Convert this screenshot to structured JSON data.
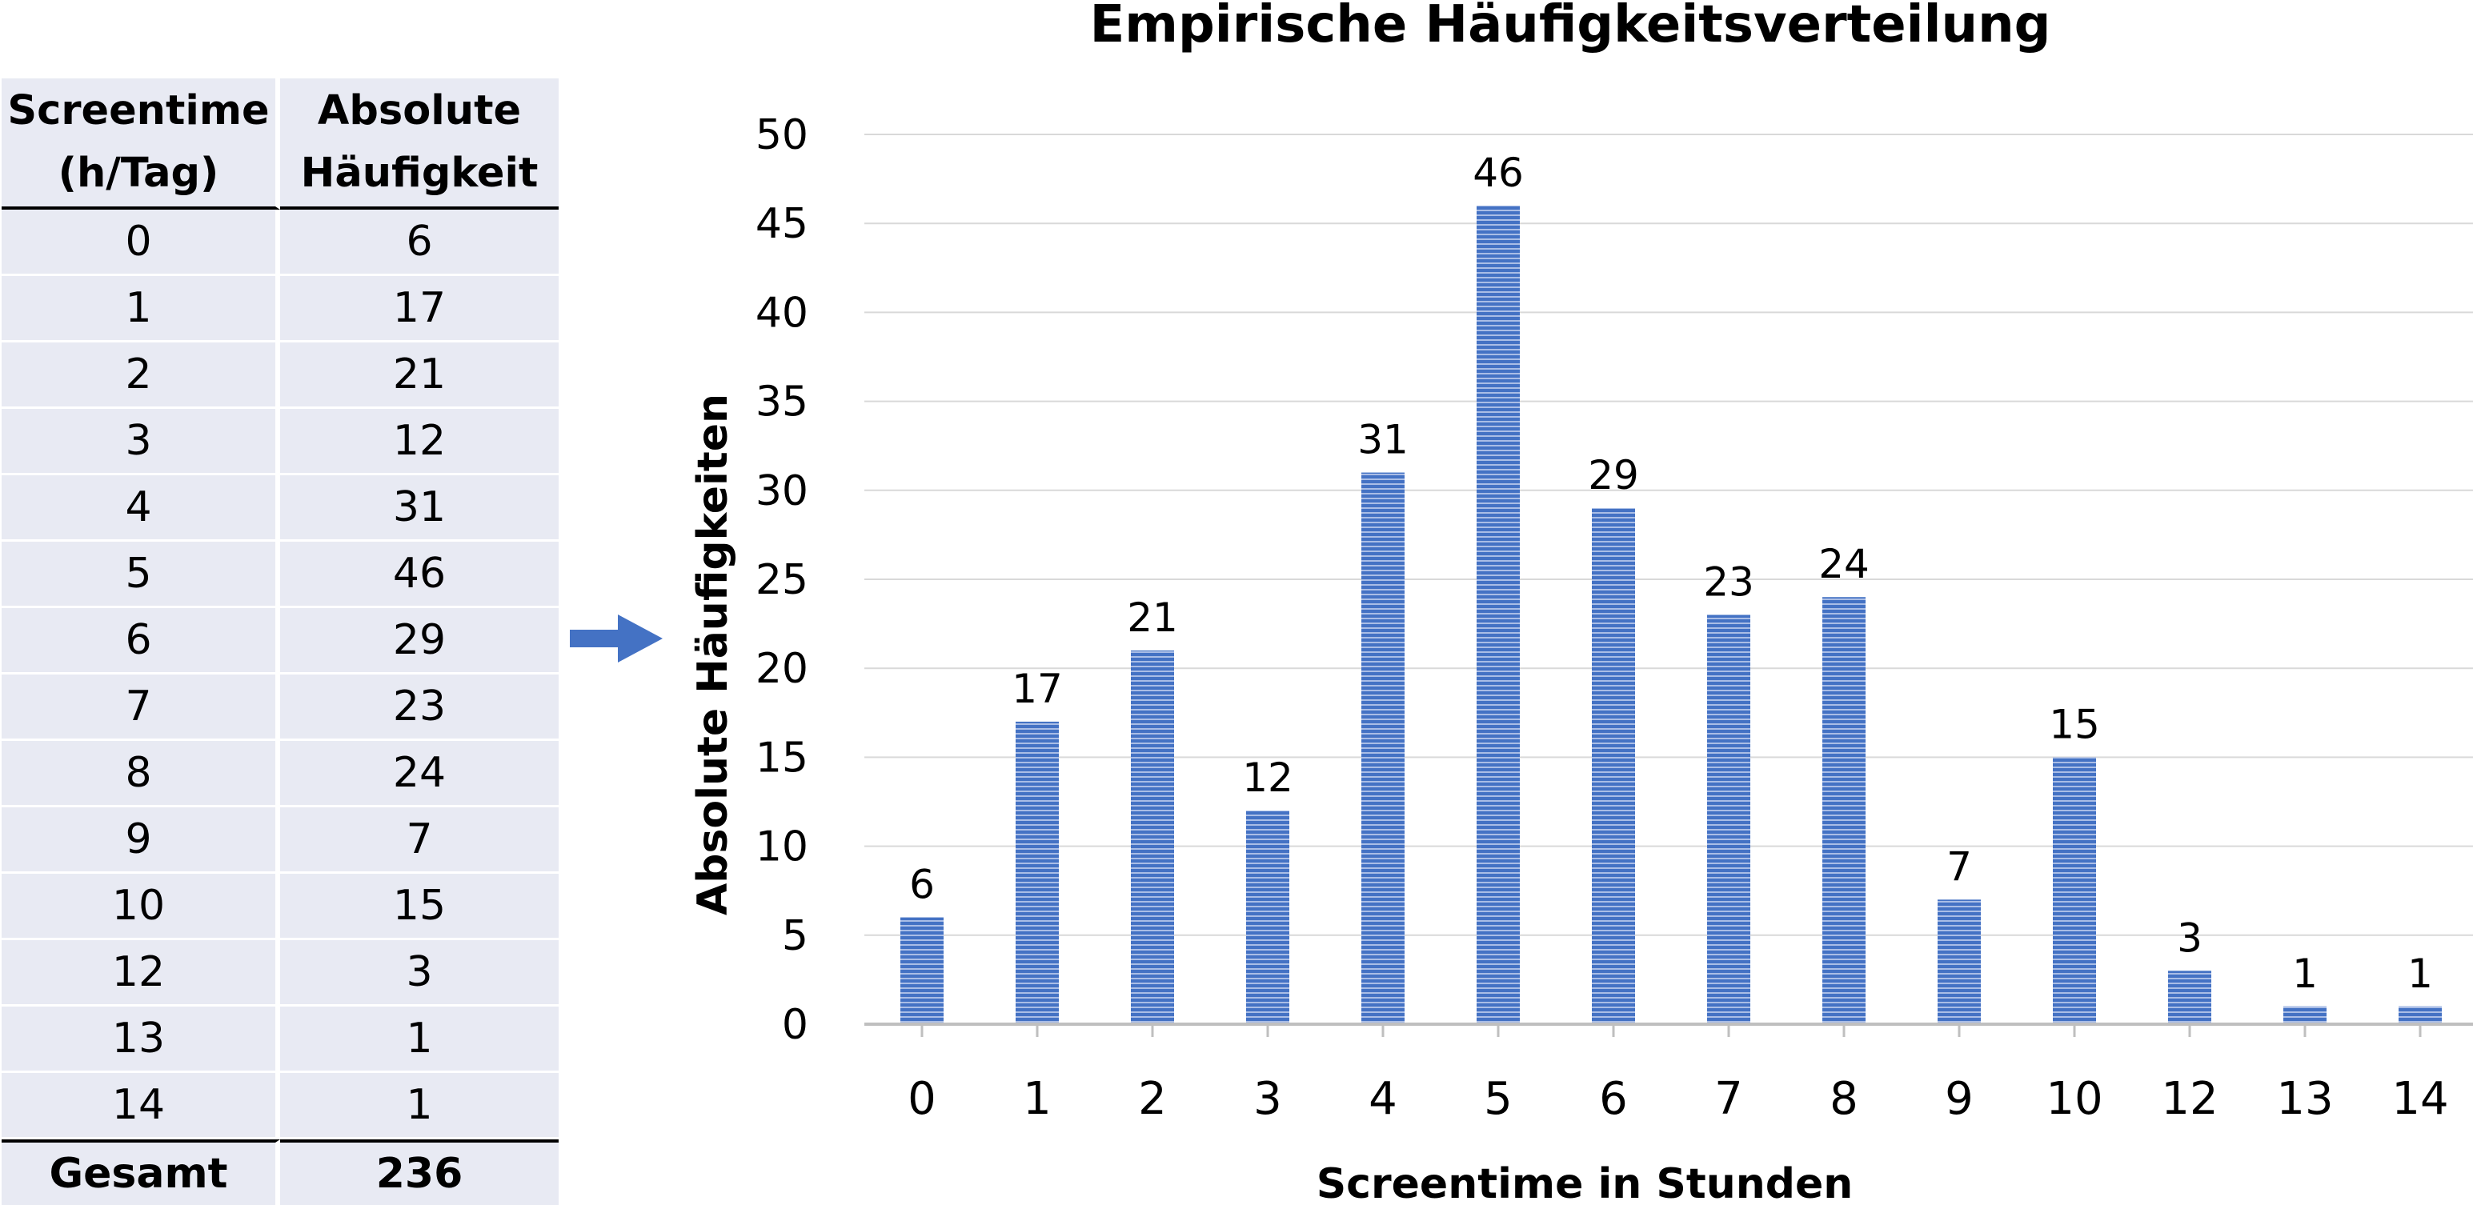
{
  "table": {
    "headers": [
      [
        "Screentime",
        "(h/Tag)"
      ],
      [
        "Absolute",
        "Häufigkeit"
      ]
    ],
    "rows": [
      [
        "0",
        "6"
      ],
      [
        "1",
        "17"
      ],
      [
        "2",
        "21"
      ],
      [
        "3",
        "12"
      ],
      [
        "4",
        "31"
      ],
      [
        "5",
        "46"
      ],
      [
        "6",
        "29"
      ],
      [
        "7",
        "23"
      ],
      [
        "8",
        "24"
      ],
      [
        "9",
        "7"
      ],
      [
        "10",
        "15"
      ],
      [
        "12",
        "3"
      ],
      [
        "13",
        "1"
      ],
      [
        "14",
        "1"
      ]
    ],
    "total_label": "Gesamt",
    "total_value": "236"
  },
  "chart_data": {
    "type": "bar",
    "title": "Empirische Häufigkeitsverteilung",
    "xlabel": "Screentime in Stunden",
    "ylabel": "Absolute Häufigkeiten",
    "categories": [
      "0",
      "1",
      "2",
      "3",
      "4",
      "5",
      "6",
      "7",
      "8",
      "9",
      "10",
      "12",
      "13",
      "14"
    ],
    "values": [
      6,
      17,
      21,
      12,
      31,
      46,
      29,
      23,
      24,
      7,
      15,
      3,
      1,
      1
    ],
    "ylim": [
      0,
      50
    ],
    "yticks": [
      0,
      5,
      10,
      15,
      20,
      25,
      30,
      35,
      40,
      45,
      50
    ],
    "data_labels": true,
    "grid": "horizontal",
    "legend": "none",
    "bar_color": "#4472c4"
  },
  "arrow_color": "#4472c4"
}
